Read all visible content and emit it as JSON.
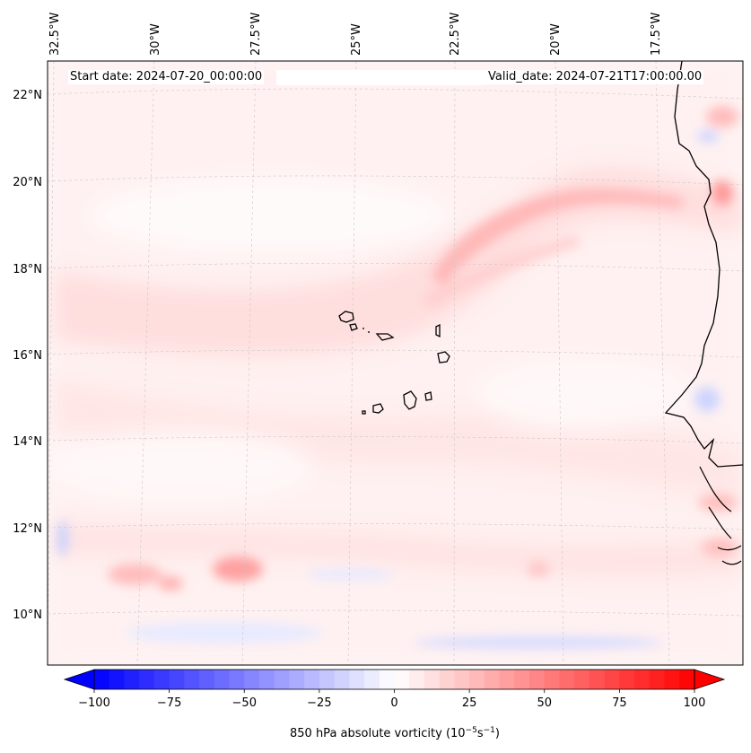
{
  "header": {
    "start_date": "Start date: 2024-07-20_00:00:00",
    "valid_date": "Valid_date: 2024-07-21T17:00:00.00"
  },
  "map": {
    "projection": "regional map, Cape Verde region (west Africa coast)",
    "longitude_labels": [
      "32.5°W",
      "30°W",
      "27.5°W",
      "25°W",
      "22.5°W",
      "20°W",
      "17.5°W"
    ],
    "latitude_labels": [
      "22°N",
      "20°N",
      "18°N",
      "16°N",
      "14°N",
      "12°N",
      "10°N"
    ],
    "gridlines": "dashed, light grey",
    "coastline_color": "#000000"
  },
  "colorbar": {
    "label_prefix": "850 hPa absolute vorticity (10",
    "label_exp1": "−5",
    "label_mid": "s",
    "label_exp2": "−1",
    "label_suffix": ")",
    "tick_labels": [
      "−100",
      "−75",
      "−50",
      "−25",
      "0",
      "25",
      "50",
      "75",
      "100"
    ],
    "vmin": -100,
    "vmax": 100,
    "colormap": "bwr",
    "extend": "both"
  },
  "colors": {
    "negative": "#0000ff",
    "zero": "#ffffff",
    "positive": "#ff0000"
  }
}
